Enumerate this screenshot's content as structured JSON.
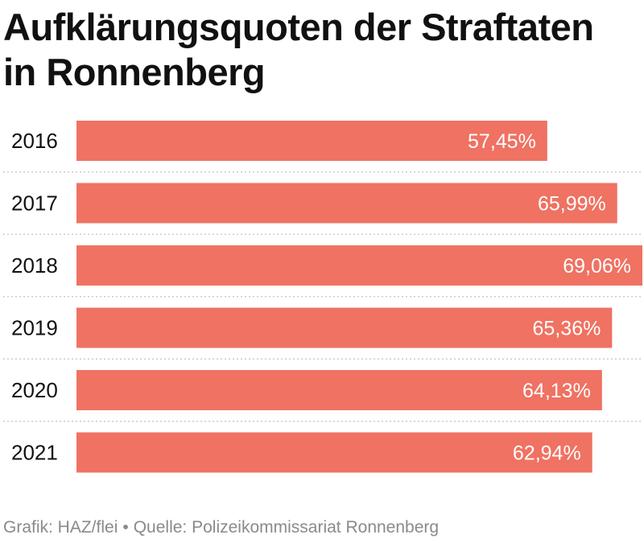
{
  "title": "Aufklärungsquoten der Straftaten in Ronnenberg",
  "footer": {
    "grafik": "Grafik: HAZ/flei",
    "separator": "•",
    "quelle": "Quelle: Polizeikommissariat Ronnenberg"
  },
  "chart_data": {
    "type": "bar",
    "orientation": "horizontal",
    "categories": [
      "2016",
      "2017",
      "2018",
      "2019",
      "2020",
      "2021"
    ],
    "values": [
      57.45,
      65.99,
      69.06,
      65.36,
      64.13,
      62.94
    ],
    "value_labels": [
      "57,45%",
      "65,99%",
      "69,06%",
      "65,36%",
      "64,13%",
      "62,94%"
    ],
    "title": "Aufklärungsquoten der Straftaten in Ronnenberg",
    "xlabel": "",
    "ylabel": "",
    "xlim": [
      0,
      69.06
    ],
    "grid": false,
    "bar_color": "#ef7262",
    "label_color": "#ffffff",
    "separator_color": "#cccccc"
  }
}
